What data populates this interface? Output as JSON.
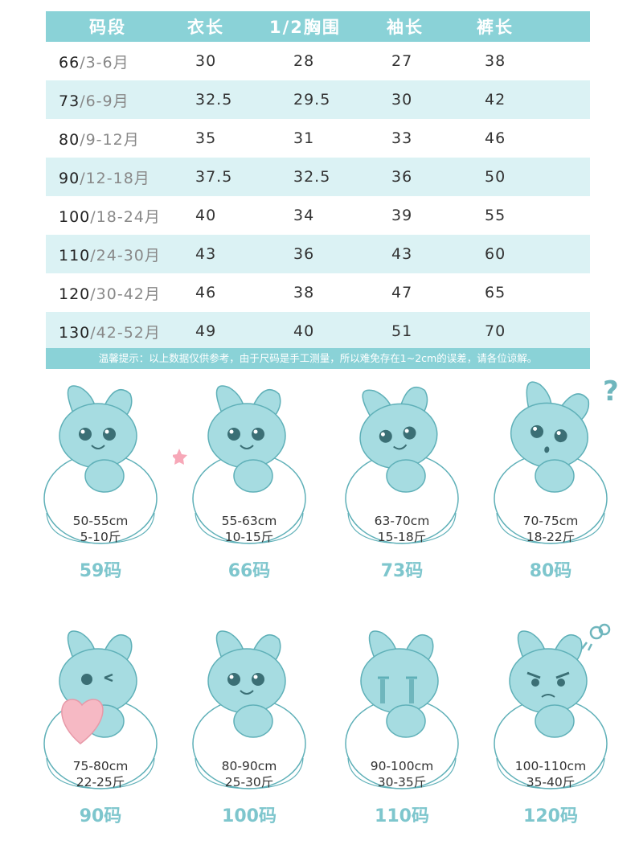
{
  "table": {
    "headers": [
      "码段",
      "衣长",
      "1/2胸围",
      "袖长",
      "裤长"
    ],
    "rows": [
      {
        "size": "66",
        "age": "3-6月",
        "length": "30",
        "chest": "28",
        "sleeve": "27",
        "pants": "38"
      },
      {
        "size": "73",
        "age": "6-9月",
        "length": "32.5",
        "chest": "29.5",
        "sleeve": "30",
        "pants": "42"
      },
      {
        "size": "80",
        "age": "9-12月",
        "length": "35",
        "chest": "31",
        "sleeve": "33",
        "pants": "46"
      },
      {
        "size": "90",
        "age": "12-18月",
        "length": "37.5",
        "chest": "32.5",
        "sleeve": "36",
        "pants": "50"
      },
      {
        "size": "100",
        "age": "18-24月",
        "length": "40",
        "chest": "34",
        "sleeve": "39",
        "pants": "55"
      },
      {
        "size": "110",
        "age": "24-30月",
        "length": "43",
        "chest": "36",
        "sleeve": "43",
        "pants": "60"
      },
      {
        "size": "120",
        "age": "30-42月",
        "length": "46",
        "chest": "38",
        "sleeve": "47",
        "pants": "65"
      },
      {
        "size": "130",
        "age": "42-52月",
        "length": "49",
        "chest": "40",
        "sleeve": "51",
        "pants": "70"
      }
    ],
    "separator": "/"
  },
  "note": "温馨提示：以上数据仅供参考，由于尺码是手工测量，所以难免存在1~2cm的误差，请各位谅解。",
  "cards": [
    {
      "height": "50-55cm",
      "weight": "5-10斤",
      "code": "59码",
      "pose": "smile"
    },
    {
      "height": "55-63cm",
      "weight": "10-15斤",
      "code": "66码",
      "pose": "star"
    },
    {
      "height": "63-70cm",
      "weight": "15-18斤",
      "code": "73码",
      "pose": "tilt"
    },
    {
      "height": "70-75cm",
      "weight": "18-22斤",
      "code": "80码",
      "pose": "question"
    },
    {
      "height": "75-80cm",
      "weight": "22-25斤",
      "code": "90码",
      "pose": "heart"
    },
    {
      "height": "80-90cm",
      "weight": "25-30斤",
      "code": "100码",
      "pose": "lean"
    },
    {
      "height": "90-100cm",
      "weight": "30-35斤",
      "code": "110码",
      "pose": "crying"
    },
    {
      "height": "100-110cm",
      "weight": "35-40斤",
      "code": "120码",
      "pose": "angry"
    }
  ],
  "colors": {
    "accent": "#8ad2d7",
    "row_alt": "#dbf2f4",
    "code_text": "#7ec6cd",
    "bunny_fill": "#a6dce1",
    "bunny_stroke": "#5fb0b8",
    "heart": "#f6b9c4"
  },
  "icons": {
    "question": "question-mark-icon",
    "star": "star-icon",
    "heart": "heart-icon",
    "steam": "angry-steam-icon"
  }
}
